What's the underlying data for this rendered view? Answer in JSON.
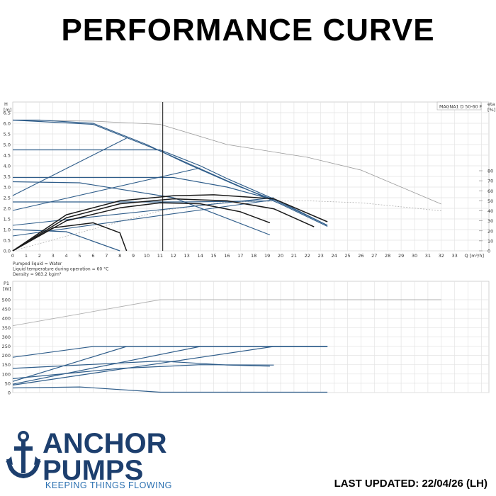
{
  "title": "PERFORMANCE CURVE",
  "brand": {
    "line1": "ANCHOR",
    "line2": "PUMPS",
    "tagline": "KEEPING THINGS FLOWING",
    "color": "#1d3f6e",
    "accent": "#2a6fb0"
  },
  "updated": "LAST UPDATED: 22/04/26 (LH)",
  "chart_data": [
    {
      "type": "line",
      "model_label": "MAGNA1 D 50-60 F",
      "ylabel": "H",
      "yunit": "[m]",
      "y2label": "eta",
      "y2unit": "[%]",
      "xlabel": "Q [m³/h]",
      "xlim": [
        0,
        34
      ],
      "ylim": [
        0,
        7
      ],
      "y2lim": [
        0,
        100
      ],
      "xticks": [
        "0",
        "1",
        "2",
        "3",
        "4",
        "5",
        "6",
        "7",
        "8",
        "9",
        "10",
        "11",
        "12",
        "13",
        "14",
        "15",
        "16",
        "17",
        "18",
        "19",
        "20",
        "21",
        "22",
        "23",
        "24",
        "25",
        "26",
        "27",
        "28",
        "29",
        "30",
        "31",
        "32",
        "33"
      ],
      "yticks": [
        "0.0",
        "0.5",
        "1.0",
        "1.5",
        "2.0",
        "2.5",
        "3.0",
        "3.5",
        "4.0",
        "4.5",
        "5.0",
        "5.5",
        "6.0",
        "6.5"
      ],
      "y2ticks": [
        "0",
        "10",
        "20",
        "30",
        "40",
        "50",
        "60",
        "70",
        "80"
      ],
      "duty_point_q": 11.2,
      "grid": true,
      "notes": [
        "Pumped liquid = Water",
        "Liquid temperature during operation = 60 °C",
        "Density = 983.2 kg/m³"
      ],
      "head_curves": [
        {
          "x": [
            0,
            6,
            11,
            16,
            20,
            23.5
          ],
          "y": [
            6.15,
            5.95,
            4.7,
            3.3,
            2.2,
            1.15
          ]
        },
        {
          "x": [
            0,
            2,
            6,
            10,
            13,
            17,
            19.5,
            23.5
          ],
          "y": [
            6.15,
            6.15,
            6.0,
            5.0,
            4.1,
            3.0,
            2.4,
            1.2
          ]
        },
        {
          "x": [
            0,
            11,
            14,
            16,
            20,
            23.5
          ],
          "y": [
            4.75,
            4.75,
            4.0,
            3.4,
            2.3,
            1.2
          ]
        },
        {
          "x": [
            0,
            12,
            16,
            19.5
          ],
          "y": [
            3.45,
            3.45,
            3.0,
            2.4
          ]
        },
        {
          "x": [
            0,
            5,
            12,
            19.2
          ],
          "y": [
            3.25,
            3.2,
            2.5,
            0.75
          ]
        },
        {
          "x": [
            0,
            8,
            13,
            19.2
          ],
          "y": [
            2.3,
            2.3,
            2.3,
            2.35
          ]
        },
        {
          "x": [
            0,
            4,
            8
          ],
          "y": [
            1.0,
            0.9,
            0.0
          ]
        }
      ],
      "system_curves": [
        {
          "x": [
            0,
            8.5
          ],
          "y": [
            2.6,
            5.3
          ]
        },
        {
          "x": [
            0,
            14
          ],
          "y": [
            1.9,
            3.9
          ]
        },
        {
          "x": [
            0,
            19.5
          ],
          "y": [
            1.2,
            2.5
          ]
        },
        {
          "x": [
            0,
            19.5
          ],
          "y": [
            0.7,
            2.4
          ]
        }
      ],
      "efficiency_curves": [
        {
          "x": [
            0,
            4,
            8,
            12,
            15,
            19.5,
            23.5
          ],
          "y2": [
            0,
            36,
            50,
            55,
            56,
            52,
            29
          ]
        },
        {
          "x": [
            0,
            4,
            8,
            12,
            16,
            19.5,
            22.5
          ],
          "y2": [
            0,
            33,
            47,
            52,
            50,
            42,
            24
          ]
        },
        {
          "x": [
            0,
            4,
            8,
            11,
            14,
            17,
            19.2
          ],
          "y2": [
            0,
            30,
            43,
            48,
            47,
            39,
            28
          ]
        },
        {
          "x": [
            0,
            3,
            6,
            8,
            8.5
          ],
          "y2": [
            0,
            23,
            28,
            18,
            0
          ]
        }
      ],
      "max_curve": {
        "x": [
          0,
          6,
          11,
          16,
          22,
          26,
          32
        ],
        "y": [
          6.15,
          6.1,
          5.95,
          5.0,
          4.4,
          3.8,
          2.2
        ]
      },
      "max_eta_curve": {
        "x": [
          0,
          11,
          16,
          22,
          26,
          32
        ],
        "y2": [
          0,
          40,
          49,
          50,
          48,
          40
        ]
      }
    },
    {
      "type": "line",
      "ylabel": "P1",
      "yunit": "[W]",
      "xlim": [
        0,
        34
      ],
      "ylim": [
        0,
        550
      ],
      "yticks": [
        "0",
        "50",
        "100",
        "150",
        "200",
        "250",
        "300",
        "350",
        "400",
        "450",
        "500"
      ],
      "grid": true,
      "power_curves": [
        {
          "x": [
            0,
            6,
            11,
            23.5
          ],
          "y": [
            190,
            248,
            248,
            248
          ]
        },
        {
          "x": [
            0,
            8.5,
            11,
            23.5
          ],
          "y": [
            60,
            248,
            248,
            248
          ]
        },
        {
          "x": [
            0,
            14,
            23.5
          ],
          "y": [
            45,
            248,
            248
          ]
        },
        {
          "x": [
            0,
            19.5,
            23.5
          ],
          "y": [
            40,
            248,
            248
          ]
        },
        {
          "x": [
            0,
            11,
            16,
            19.2
          ],
          "y": [
            130,
            170,
            148,
            142
          ]
        },
        {
          "x": [
            0,
            8,
            14,
            19.5
          ],
          "y": [
            75,
            130,
            150,
            148
          ]
        },
        {
          "x": [
            0,
            5,
            11,
            23.5
          ],
          "y": [
            25,
            30,
            2,
            2
          ]
        }
      ],
      "max_power_curve": {
        "x": [
          0,
          11,
          32
        ],
        "y": [
          360,
          500,
          500
        ]
      }
    }
  ]
}
